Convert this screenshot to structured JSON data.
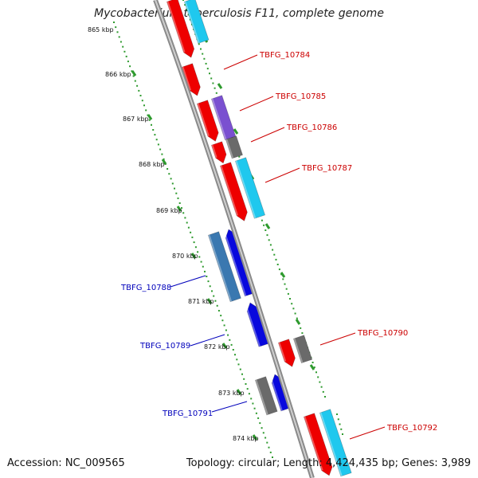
{
  "title": "Mycobacterium tuberculosis F11, complete genome",
  "accession": "Accession: NC_009565",
  "topology": "Topology: circular; Length: 4,424,435 bp; Genes: 3,989",
  "ticks": [
    "865 kbp",
    "866 kbp",
    "867 kbp",
    "868 kbp",
    "869 kbp",
    "870 kbp",
    "871 kbp",
    "872 kbp",
    "873 kbp",
    "874 kbp"
  ],
  "colors": {
    "backbone": "#8a8a8a",
    "tick_dots": "#2e9a2e",
    "forward_label": "#cc0000",
    "reverse_label": "#0000bb",
    "red_gene": "#ee0000",
    "cyan_gene": "#1fc8ee",
    "grey_gene": "#6a6a6a",
    "blue_gene": "#0808dd",
    "steel_gene": "#3a78b0",
    "purple_gene": "#7a50d0"
  },
  "gene_labels": [
    {
      "name": "TBFG_10784",
      "strand": "forward"
    },
    {
      "name": "TBFG_10785",
      "strand": "forward"
    },
    {
      "name": "TBFG_10786",
      "strand": "forward"
    },
    {
      "name": "TBFG_10787",
      "strand": "forward"
    },
    {
      "name": "TBFG_10788",
      "strand": "reverse"
    },
    {
      "name": "TBFG_10789",
      "strand": "reverse"
    },
    {
      "name": "TBFG_10790",
      "strand": "forward"
    },
    {
      "name": "TBFG_10791",
      "strand": "reverse"
    },
    {
      "name": "TBFG_10792",
      "strand": "forward"
    }
  ]
}
